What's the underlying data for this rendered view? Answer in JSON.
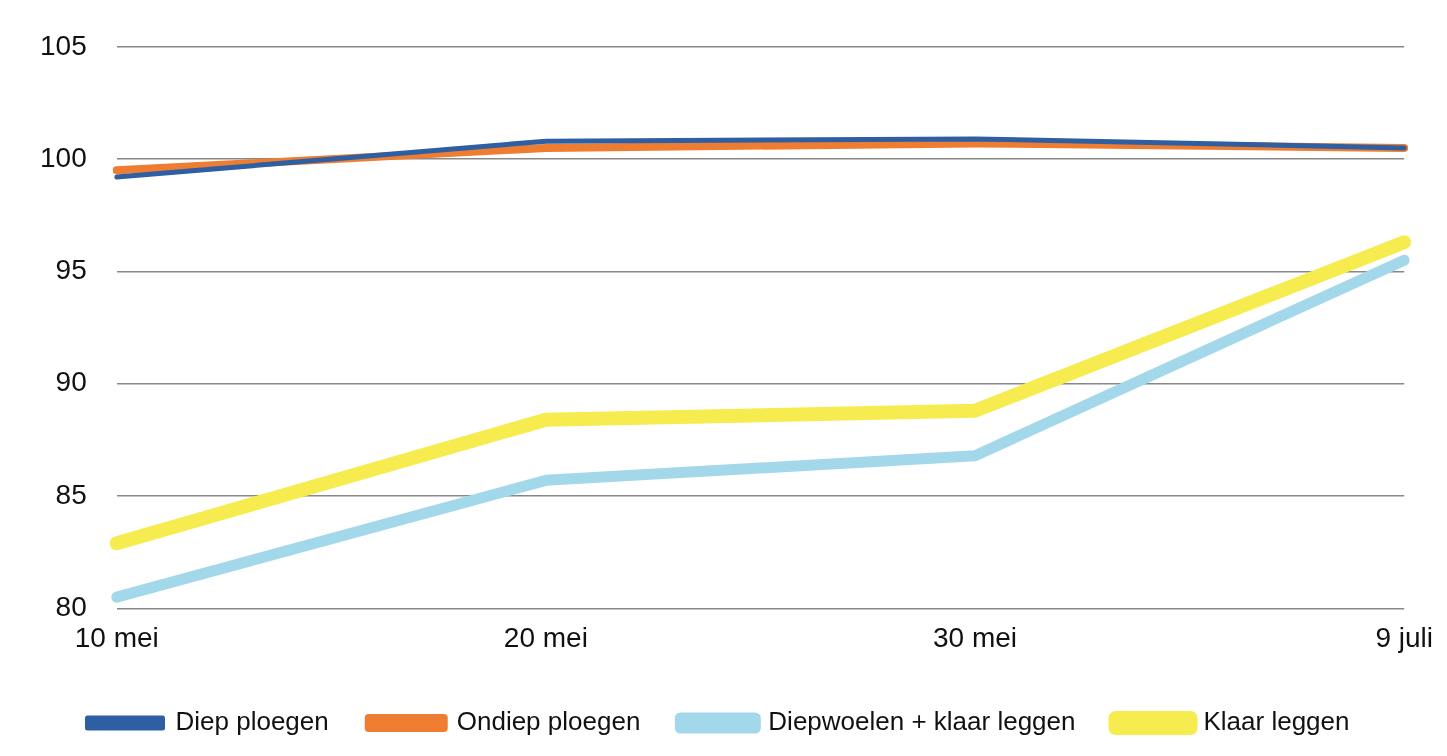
{
  "chart_data": {
    "type": "line",
    "categories": [
      "10 mei",
      "20 mei",
      "30 mei",
      "9 juli"
    ],
    "ylim": [
      80,
      105
    ],
    "yticks": [
      80,
      85,
      90,
      95,
      100,
      105
    ],
    "grid": "y",
    "legend": "bottom",
    "marker": "none",
    "line_style": "solid",
    "series": [
      {
        "name": "Diep ploegen",
        "color": "#2e5fa3",
        "values": [
          99.2,
          100.8,
          100.9,
          100.5
        ]
      },
      {
        "name": "Ondiep ploegen",
        "color": "#ee7d31",
        "values": [
          99.5,
          100.5,
          100.7,
          100.5
        ]
      },
      {
        "name": "Diepwoelen + klaar leggen",
        "color": "#a3d8eb",
        "values": [
          80.5,
          85.7,
          86.8,
          95.5
        ]
      },
      {
        "name": "Klaar leggen",
        "color": "#f7ec4f",
        "values": [
          82.9,
          88.4,
          88.8,
          96.3
        ]
      }
    ]
  }
}
